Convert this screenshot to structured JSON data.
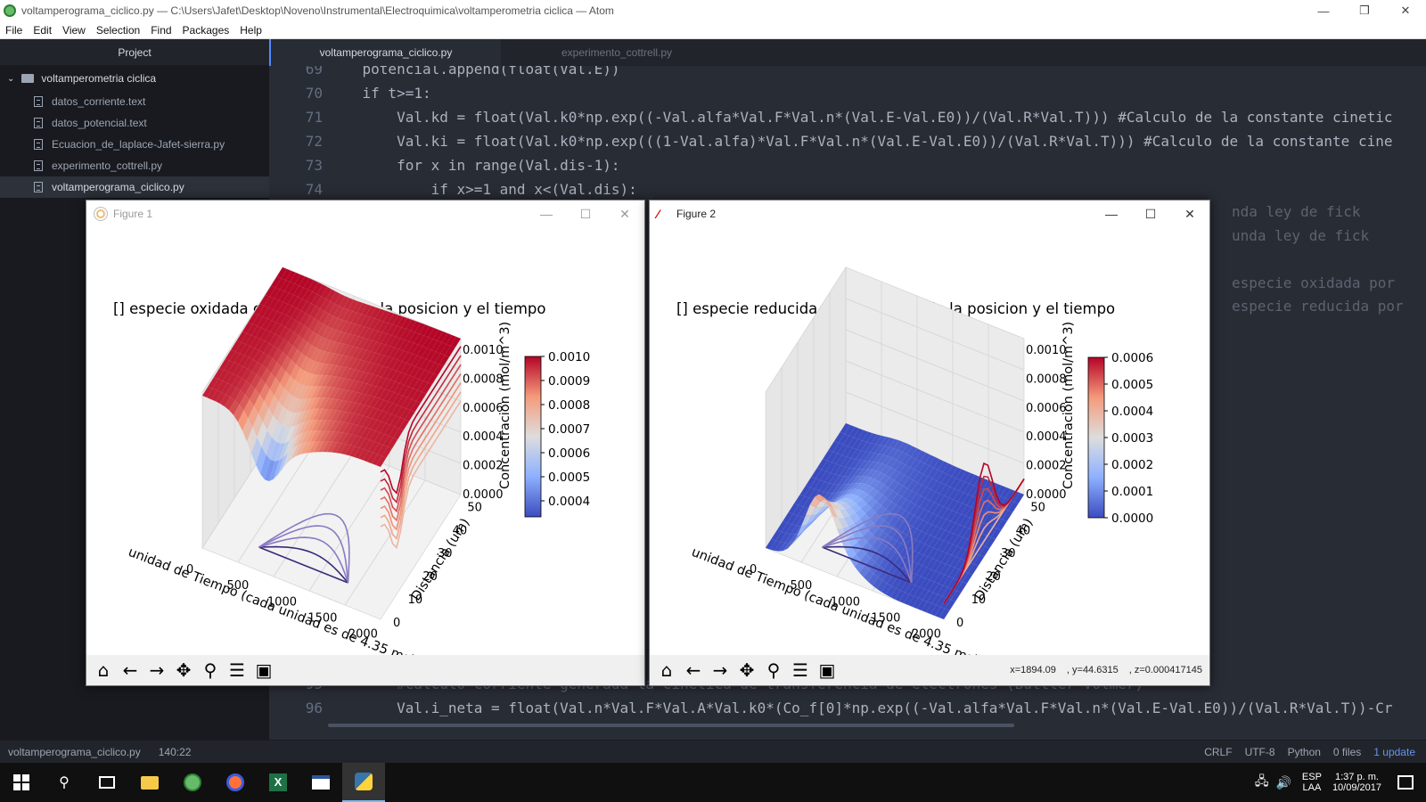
{
  "window": {
    "title": "voltamperograma_ciclico.py — C:\\Users\\Jafet\\Desktop\\Noveno\\Instrumental\\Electroquimica\\voltamperometria ciclica — Atom",
    "controls": [
      "—",
      "❐",
      "✕"
    ]
  },
  "menu": [
    "File",
    "Edit",
    "View",
    "Selection",
    "Find",
    "Packages",
    "Help"
  ],
  "treeview": {
    "header": "Project",
    "folder": "voltamperometria ciclica",
    "files": [
      "datos_corriente.text",
      "datos_potencial.text",
      "Ecuacion_de_laplace-Jafet-sierra.py",
      "experimento_cottrell.py",
      "voltamperograma_ciclico.py"
    ]
  },
  "tabs": [
    "voltamperograma_ciclico.py",
    "experimento_cottrell.py"
  ],
  "code": {
    "lines": [
      {
        "n": "69",
        "text": "    potencial.append(float(Val.E))"
      },
      {
        "n": "70",
        "text": "    if t>=1:"
      },
      {
        "n": "71",
        "text": "        Val.kd = float(Val.k0*np.exp((-Val.alfa*Val.F*Val.n*(Val.E-Val.E0))/(Val.R*Val.T))) #Calculo de la constante cinetic"
      },
      {
        "n": "72",
        "text": "        Val.ki = float(Val.k0*np.exp(((1-Val.alfa)*Val.F*Val.n*(Val.E-Val.E0))/(Val.R*Val.T))) #Calculo de la constante cine"
      },
      {
        "n": "73",
        "text": "        for x in range(Val.dis-1):"
      },
      {
        "n": "74",
        "text": "            if x>=1 and x<(Val.dis):"
      }
    ],
    "bottom_lines": [
      {
        "n": "95",
        "text": "        #Calculo corriente generada la cinetica de transferencia de electrones (Buttler-Volmer)"
      },
      {
        "n": "96",
        "text": "        Val.i_neta = float(Val.n*Val.F*Val.A*Val.k0*(Co_f[0]*np.exp((-Val.alfa*Val.F*Val.n*(Val.E-Val.E0))/(Val.R*Val.T))-Cr"
      }
    ],
    "right_fragments": [
      "nda ley de fick",
      "unda ley de fick",
      "especie oxidada por",
      "especie reducida por"
    ]
  },
  "status": {
    "file": "voltamperograma_ciclico.py",
    "position": "140:22",
    "line_ending": "CRLF",
    "encoding": "UTF-8",
    "grammar": "Python",
    "git": "0 files",
    "update": "1 update"
  },
  "taskbar": {
    "lang": "ESP",
    "lang2": "LAA",
    "time": "1:37 p. m.",
    "date": "10/09/2017"
  },
  "figure1": {
    "title": "Figure 1",
    "controls": [
      "—",
      "☐",
      "✕"
    ]
  },
  "figure2": {
    "title": "Figure 2",
    "controls": [
      "—",
      "☐",
      "✕"
    ],
    "coords": [
      "x=1894.09",
      ", y=44.6315",
      ", z=0.000417145"
    ]
  },
  "chart_data": [
    {
      "type": "surface3d",
      "title": "[] especie oxidada como funcion de la posicion y el tiempo",
      "xlabel": "unidad de Tiempo (cada unidad es de 4.35 ms)",
      "ylabel": "Distancia (um)",
      "zlabel": "Concentracion (mol/m^3)",
      "x_ticks": [
        "0",
        "500",
        "1000",
        "1500",
        "2000"
      ],
      "y_ticks": [
        "0",
        "10",
        "20",
        "30",
        "40",
        "50"
      ],
      "z_ticks": [
        "0.0000",
        "0.0002",
        "0.0004",
        "0.0006",
        "0.0008",
        "0.0010"
      ],
      "colorbar_ticks": [
        "0.0004",
        "0.0005",
        "0.0006",
        "0.0007",
        "0.0008",
        "0.0009",
        "0.0010"
      ],
      "colormap": "coolwarm"
    },
    {
      "type": "surface3d",
      "title": "[] especie reducida como funcion de la posicion y el tiempo",
      "xlabel": "unidad de Tiempo (cada unidad es de 4.35 ms)",
      "ylabel": "Distancia (um)",
      "zlabel": "Concentracion (mol/m^3)",
      "x_ticks": [
        "0",
        "500",
        "1000",
        "1500",
        "2000"
      ],
      "y_ticks": [
        "0",
        "10",
        "20",
        "30",
        "40",
        "50"
      ],
      "z_ticks": [
        "0.0000",
        "0.0002",
        "0.0004",
        "0.0006",
        "0.0008",
        "0.0010"
      ],
      "colorbar_ticks": [
        "0.0000",
        "0.0001",
        "0.0002",
        "0.0003",
        "0.0004",
        "0.0005",
        "0.0006"
      ],
      "colormap": "coolwarm"
    }
  ],
  "toolbar_icons": [
    "home-icon",
    "back-icon",
    "forward-icon",
    "pan-icon",
    "zoom-icon",
    "configure-icon",
    "save-icon"
  ]
}
